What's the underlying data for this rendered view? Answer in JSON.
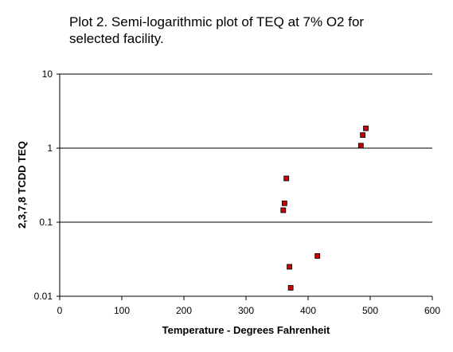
{
  "chart_data": {
    "type": "scatter",
    "title": "Plot 2.  Semi-logarithmic plot of TEQ at 7% O2 for\nselected facility.",
    "xlabel": "Temperature - Degrees Fahrenheit",
    "ylabel": "2,3,7,8 TCDD TEQ",
    "xlim": [
      0,
      600
    ],
    "ylim": [
      0.01,
      10
    ],
    "y_scale": "log",
    "x_ticks": [
      "0",
      "100",
      "200",
      "300",
      "400",
      "500",
      "600"
    ],
    "y_ticks": [
      "10",
      "1",
      "0.1",
      "0.01"
    ],
    "grid": "horizontal",
    "legend": "none",
    "marker_color": "#cc0000",
    "series": [
      {
        "points": [
          {
            "x": 365,
            "y": 0.39
          },
          {
            "x": 362,
            "y": 0.18
          },
          {
            "x": 360,
            "y": 0.145
          },
          {
            "x": 370,
            "y": 0.025
          },
          {
            "x": 372,
            "y": 0.013
          },
          {
            "x": 415,
            "y": 0.035
          },
          {
            "x": 485,
            "y": 1.08
          },
          {
            "x": 488,
            "y": 1.5
          },
          {
            "x": 493,
            "y": 1.85
          }
        ]
      }
    ]
  }
}
